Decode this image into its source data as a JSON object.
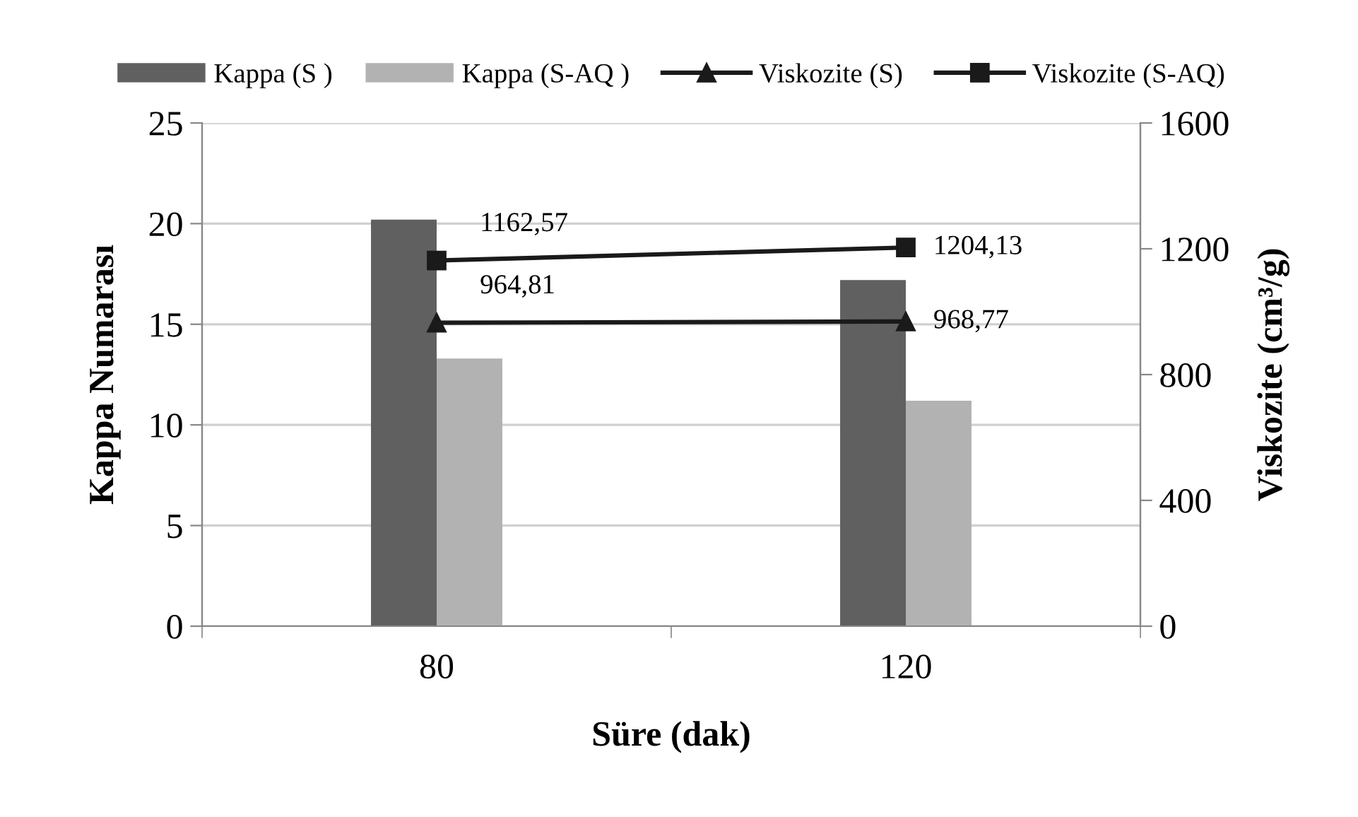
{
  "chart_data": {
    "type": "bar",
    "xlabel": "Süre (dak)",
    "ylabel": "Kappa Numarası",
    "y2label": "Viskozite (cm³/g)",
    "categories": [
      "80",
      "120"
    ],
    "series": [
      {
        "name": "Kappa (S )",
        "color": "#606060",
        "values": [
          20.2,
          17.2
        ]
      },
      {
        "name": "Kappa (S-AQ )",
        "color": "#b2b2b2",
        "values": [
          13.3,
          11.2
        ]
      },
      {
        "name": "Viskozite (S)",
        "type": "line",
        "axis": "y2",
        "color": "#1a1a1a",
        "marker": "triangle",
        "values": [
          964.81,
          968.77
        ],
        "value_labels": [
          "964,81",
          "968,77"
        ]
      },
      {
        "name": "Viskozite (S-AQ)",
        "type": "line",
        "axis": "y2",
        "color": "#1a1a1a",
        "marker": "square",
        "values": [
          1162.57,
          1204.13
        ],
        "value_labels": [
          "1162,57",
          "1204,13"
        ]
      }
    ],
    "ylim": [
      0,
      25
    ],
    "yticks": [
      0,
      5,
      10,
      15,
      20,
      25
    ],
    "y2lim": [
      0,
      1600
    ],
    "y2ticks": [
      0,
      400,
      800,
      1200,
      1600
    ],
    "grid": "y",
    "legend": "top"
  }
}
